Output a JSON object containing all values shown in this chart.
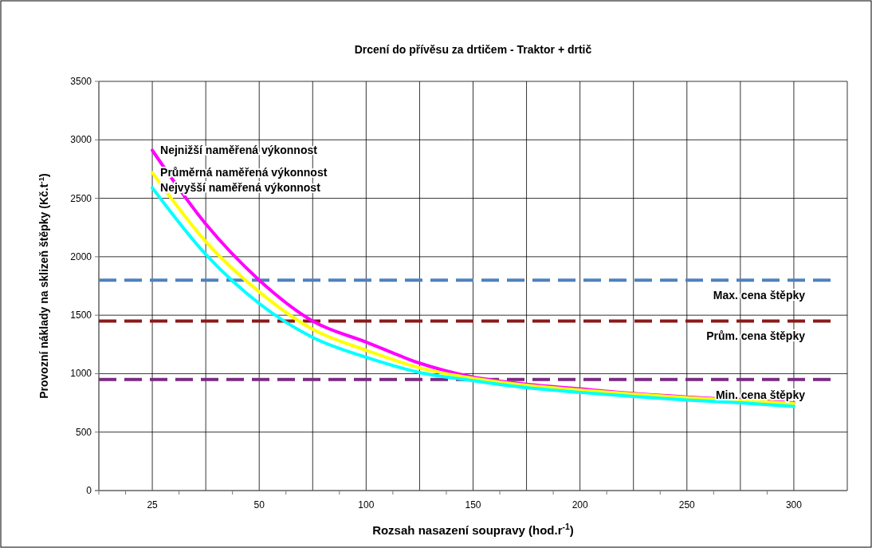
{
  "chart_data": {
    "type": "line",
    "title": "Drcení do přívěsu za drtičem - Traktor + drtič",
    "xlabel": "Rozsah nasazení soupravy (hod.r$^{-1}$)",
    "ylabel": "Provozní náklady na sklizeň štěpky (Kč.t$^{-1}$)",
    "categories": [
      "25",
      null,
      "50",
      null,
      "100",
      null,
      "150",
      null,
      "200",
      null,
      "250",
      null,
      "300"
    ],
    "series": [
      {
        "name": "Nejnižší naměřená výkonnost",
        "color": "#ff00ff",
        "values": [
          2910,
          2280,
          1800,
          1450,
          1270,
          1090,
          970,
          910,
          870,
          830,
          800,
          775,
          750
        ]
      },
      {
        "name": "Průměrná naměřená výkonnost",
        "color": "#ffff00",
        "values": [
          2720,
          2130,
          1700,
          1380,
          1200,
          1050,
          960,
          900,
          860,
          825,
          795,
          770,
          745
        ]
      },
      {
        "name": "Nejvyšší naměřená výkonnost",
        "color": "#00ffff",
        "values": [
          2590,
          2020,
          1600,
          1310,
          1140,
          1010,
          940,
          880,
          840,
          805,
          775,
          750,
          720
        ]
      }
    ],
    "ylim": [
      0,
      3500
    ],
    "yticks": [
      0,
      500,
      1000,
      1500,
      2000,
      2500,
      3000,
      3500
    ],
    "grid": true,
    "legend": false,
    "marker": "none",
    "line_style": "solid",
    "ref_lines": [
      {
        "axis": "y",
        "value": 1800,
        "label": "Max. cena štěpky",
        "color": "#4f81bd",
        "line_style": "dashed"
      },
      {
        "axis": "y",
        "value": 1450,
        "label": "Prům. cena štěpky",
        "color": "#8b1a1a",
        "line_style": "dashed"
      },
      {
        "axis": "y",
        "value": 950,
        "label": "Min. cena štěpky",
        "color": "#7a2a82",
        "line_style": "dashed"
      }
    ]
  }
}
